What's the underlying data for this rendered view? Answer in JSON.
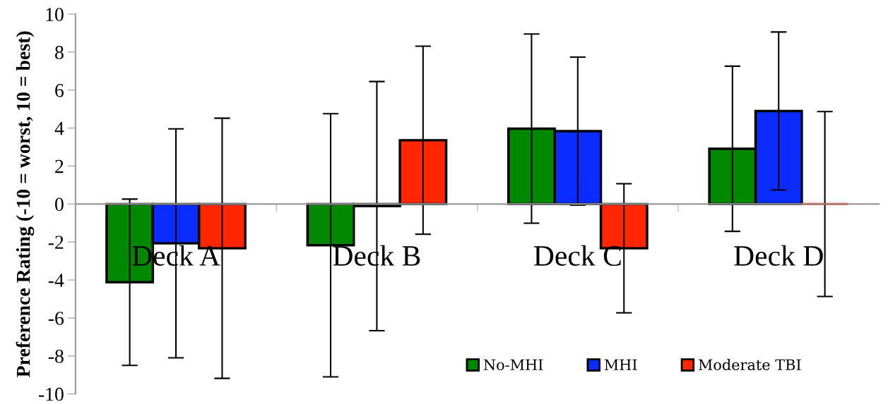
{
  "chart_data": {
    "type": "bar",
    "ylabel": "Preference Rating (-10 = worst, 10 = best)",
    "categories": [
      "Deck A",
      "Deck B",
      "Deck C",
      "Deck D"
    ],
    "series": [
      {
        "name": "No-MHI",
        "color": "#008800",
        "values": [
          -4.12,
          -2.17,
          3.97,
          2.91
        ],
        "errors": [
          4.38,
          6.93,
          4.98,
          4.35
        ]
      },
      {
        "name": "MHI",
        "color": "#0a2cff",
        "values": [
          -2.07,
          -0.11,
          3.84,
          4.9
        ],
        "errors": [
          6.03,
          6.56,
          3.9,
          4.16
        ]
      },
      {
        "name": "Moderate TBI",
        "color": "#ff2600",
        "values": [
          -2.33,
          3.36,
          -2.33,
          0
        ],
        "errors": [
          6.85,
          4.95,
          3.4,
          4.87
        ]
      }
    ],
    "ylim": [
      -10,
      10
    ],
    "yticks": [
      -10,
      -8,
      -6,
      -4,
      -2,
      0,
      2,
      4,
      6,
      8,
      10
    ],
    "grid": false,
    "legend": "bottom right"
  }
}
